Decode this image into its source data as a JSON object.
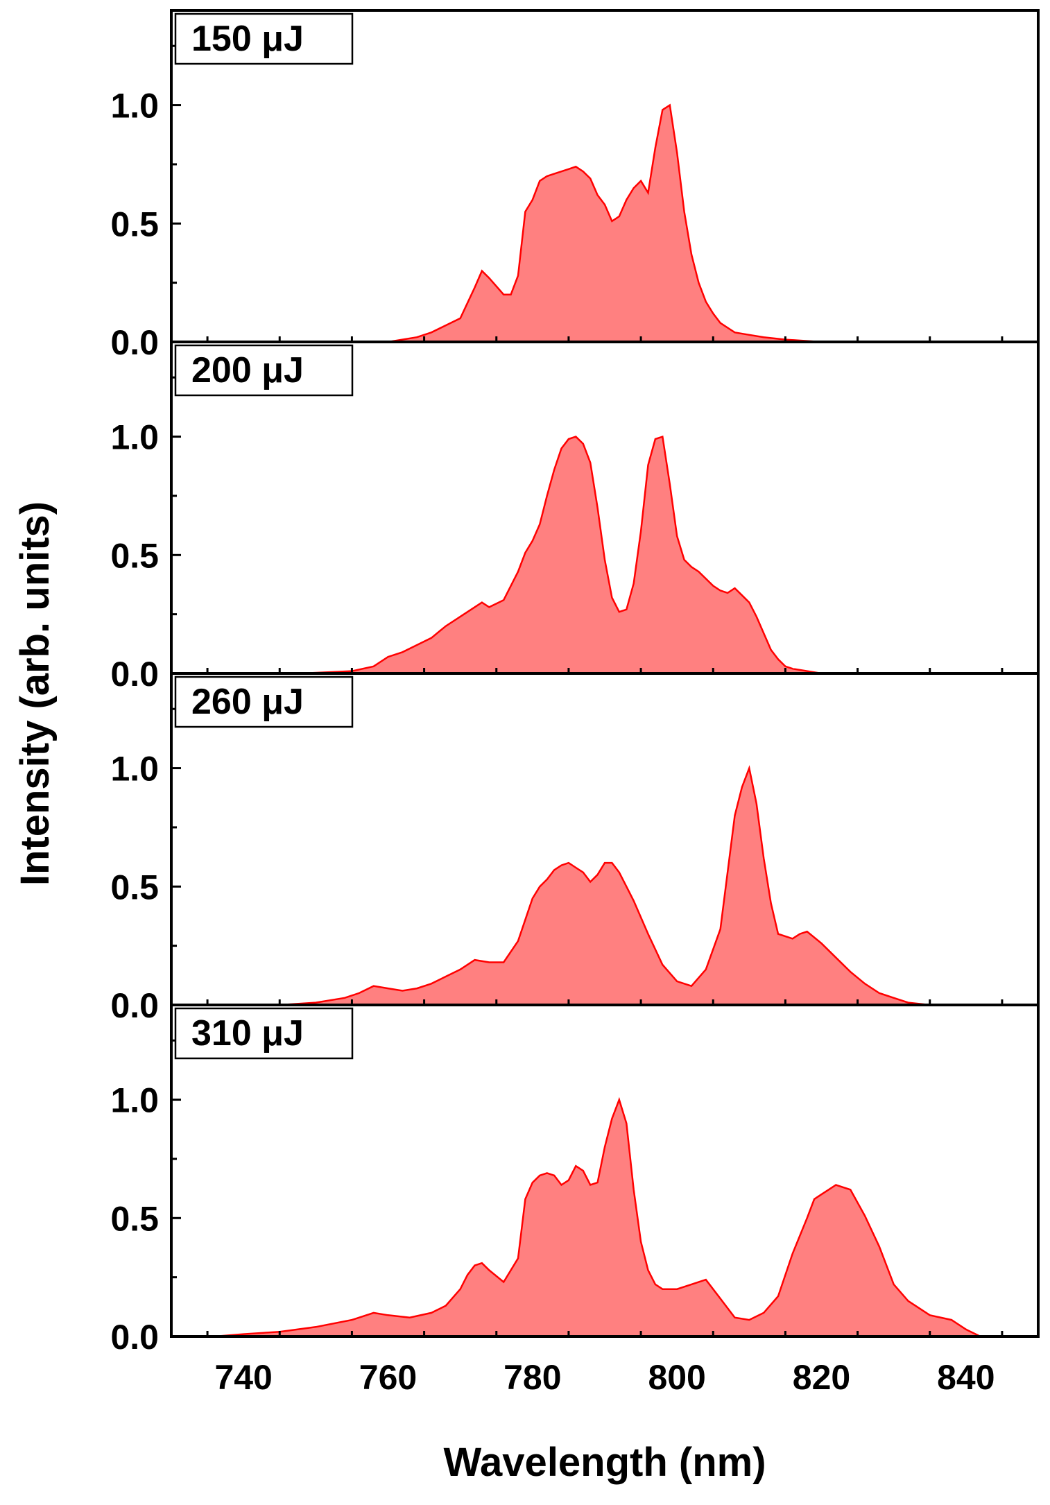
{
  "chart_data": {
    "type": "area",
    "layout": "stacked-panels",
    "shared_x_axis": true,
    "xlabel": "Wavelength (nm)",
    "ylabel": "Intensity (arb. units)",
    "xlim": [
      730,
      850
    ],
    "ylim": [
      0,
      1.4
    ],
    "x_ticks": [
      740,
      760,
      780,
      800,
      820,
      840
    ],
    "y_ticks": [
      0.0,
      0.5,
      1.0
    ],
    "y_tick_labels": [
      "0.0",
      "0.5",
      "1.0"
    ],
    "grid": false,
    "legend": "none",
    "fill_color": "#ff8080",
    "line_color": "#ff0000",
    "series": [
      {
        "name": "150 μJ",
        "x": [
          760,
          764,
          766,
          768,
          770,
          772,
          773,
          774,
          776,
          777,
          778,
          779,
          780,
          781,
          782,
          783,
          784,
          785,
          786,
          787,
          788,
          789,
          790,
          791,
          792,
          793,
          794,
          795,
          796,
          797,
          798,
          799,
          800,
          801,
          802,
          803,
          804,
          805,
          806,
          807,
          808,
          810,
          812,
          815,
          820
        ],
        "y": [
          0,
          0.02,
          0.04,
          0.07,
          0.1,
          0.23,
          0.3,
          0.27,
          0.2,
          0.2,
          0.28,
          0.55,
          0.6,
          0.68,
          0.7,
          0.71,
          0.72,
          0.73,
          0.74,
          0.72,
          0.69,
          0.62,
          0.58,
          0.51,
          0.53,
          0.6,
          0.65,
          0.68,
          0.63,
          0.82,
          0.98,
          1.0,
          0.8,
          0.55,
          0.37,
          0.25,
          0.17,
          0.12,
          0.08,
          0.06,
          0.04,
          0.03,
          0.02,
          0.01,
          0
        ]
      },
      {
        "name": "200 μJ",
        "x": [
          748,
          755,
          758,
          760,
          762,
          764,
          766,
          768,
          770,
          772,
          773,
          774,
          776,
          777,
          778,
          779,
          780,
          781,
          782,
          783,
          784,
          785,
          786,
          787,
          788,
          789,
          790,
          791,
          792,
          793,
          794,
          795,
          796,
          797,
          798,
          799,
          800,
          801,
          802,
          803,
          804,
          805,
          806,
          807,
          808,
          809,
          810,
          811,
          812,
          813,
          814,
          815,
          816,
          818,
          820,
          823,
          826
        ],
        "y": [
          0,
          0.01,
          0.03,
          0.07,
          0.09,
          0.12,
          0.15,
          0.2,
          0.24,
          0.28,
          0.3,
          0.28,
          0.31,
          0.37,
          0.43,
          0.51,
          0.56,
          0.63,
          0.75,
          0.86,
          0.95,
          0.99,
          1.0,
          0.97,
          0.89,
          0.7,
          0.48,
          0.32,
          0.26,
          0.27,
          0.38,
          0.6,
          0.88,
          0.99,
          1.0,
          0.8,
          0.58,
          0.48,
          0.45,
          0.43,
          0.4,
          0.37,
          0.35,
          0.34,
          0.36,
          0.33,
          0.3,
          0.24,
          0.17,
          0.1,
          0.06,
          0.03,
          0.02,
          0.01,
          0.0,
          0,
          0
        ]
      },
      {
        "name": "260 μJ",
        "x": [
          745,
          750,
          754,
          756,
          758,
          760,
          762,
          764,
          766,
          768,
          770,
          772,
          774,
          776,
          778,
          780,
          781,
          782,
          783,
          784,
          785,
          786,
          787,
          788,
          789,
          790,
          791,
          792,
          793,
          794,
          796,
          798,
          800,
          802,
          804,
          806,
          808,
          809,
          810,
          811,
          812,
          813,
          814,
          816,
          817,
          818,
          820,
          822,
          824,
          826,
          828,
          830,
          832,
          835
        ],
        "y": [
          0,
          0.01,
          0.03,
          0.05,
          0.08,
          0.07,
          0.06,
          0.07,
          0.09,
          0.12,
          0.15,
          0.19,
          0.18,
          0.18,
          0.27,
          0.45,
          0.5,
          0.53,
          0.57,
          0.59,
          0.6,
          0.58,
          0.56,
          0.52,
          0.55,
          0.6,
          0.6,
          0.56,
          0.5,
          0.44,
          0.3,
          0.17,
          0.1,
          0.08,
          0.15,
          0.32,
          0.8,
          0.92,
          1.0,
          0.85,
          0.62,
          0.43,
          0.3,
          0.28,
          0.3,
          0.31,
          0.26,
          0.2,
          0.14,
          0.09,
          0.05,
          0.03,
          0.01,
          0
        ]
      },
      {
        "name": "310 μJ",
        "x": [
          736,
          740,
          745,
          750,
          755,
          758,
          760,
          763,
          766,
          768,
          770,
          771,
          772,
          773,
          774,
          776,
          778,
          779,
          780,
          781,
          782,
          783,
          784,
          785,
          786,
          787,
          788,
          789,
          790,
          791,
          792,
          793,
          794,
          795,
          796,
          797,
          798,
          800,
          802,
          804,
          806,
          808,
          810,
          812,
          814,
          816,
          818,
          819,
          820,
          821,
          822,
          823,
          824,
          826,
          828,
          830,
          832,
          835,
          838,
          840,
          842
        ],
        "y": [
          0,
          0.01,
          0.02,
          0.04,
          0.07,
          0.1,
          0.09,
          0.08,
          0.1,
          0.13,
          0.2,
          0.26,
          0.3,
          0.31,
          0.28,
          0.23,
          0.33,
          0.58,
          0.65,
          0.68,
          0.69,
          0.68,
          0.64,
          0.66,
          0.72,
          0.7,
          0.64,
          0.65,
          0.8,
          0.92,
          1.0,
          0.9,
          0.62,
          0.4,
          0.28,
          0.22,
          0.2,
          0.2,
          0.22,
          0.24,
          0.16,
          0.08,
          0.07,
          0.1,
          0.17,
          0.35,
          0.5,
          0.58,
          0.6,
          0.62,
          0.64,
          0.63,
          0.62,
          0.51,
          0.38,
          0.22,
          0.15,
          0.09,
          0.07,
          0.03,
          0
        ]
      }
    ]
  }
}
